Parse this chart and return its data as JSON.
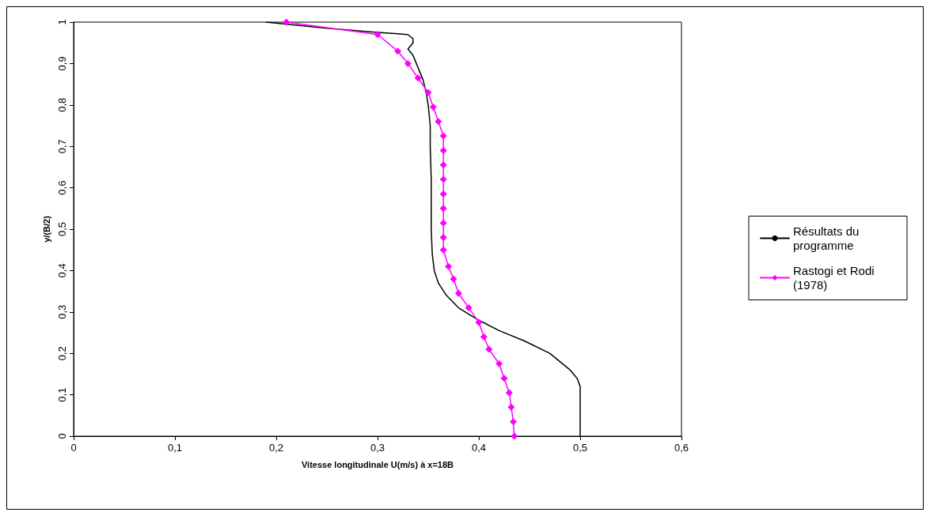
{
  "chart_data": {
    "type": "line",
    "xlabel": "Vitesse longitudinale U(m/s) à x=18B",
    "ylabel": "y/(B/2)",
    "xlim": [
      0,
      0.6
    ],
    "xticks": [
      0,
      {
        "value": 0.1,
        "label": "0,1"
      },
      {
        "value": 0.2,
        "label": "0,2"
      },
      {
        "value": 0.3,
        "label": "0,3"
      },
      {
        "value": 0.4,
        "label": "0,4"
      },
      {
        "value": 0.5,
        "label": "0,5"
      },
      {
        "value": 0.6,
        "label": "0,6"
      }
    ],
    "ylim": [
      0,
      1
    ],
    "yticks": [
      0,
      {
        "value": 0.1,
        "label": "0,1"
      },
      {
        "value": 0.2,
        "label": "0,2"
      },
      {
        "value": 0.3,
        "label": "0,3"
      },
      {
        "value": 0.4,
        "label": "0,4"
      },
      {
        "value": 0.5,
        "label": "0,5"
      },
      {
        "value": 0.6,
        "label": "0,6"
      },
      {
        "value": 0.7,
        "label": "0,7"
      },
      {
        "value": 0.8,
        "label": "0,8"
      },
      {
        "value": 0.9,
        "label": "0,9"
      },
      1
    ],
    "grid": false,
    "legend": "right",
    "line_style": "solid",
    "series": [
      {
        "name": "Résultats du programme",
        "color": "#000000",
        "marker": "none",
        "x": [
          0.19,
          0.25,
          0.3,
          0.33,
          0.335,
          0.335,
          0.33,
          0.335,
          0.34,
          0.345,
          0.348,
          0.35,
          0.352,
          0.352,
          0.353,
          0.353,
          0.354,
          0.356,
          0.36,
          0.368,
          0.38,
          0.4,
          0.42,
          0.445,
          0.47,
          0.48,
          0.49,
          0.497,
          0.5,
          0.5,
          0.5
        ],
        "values": [
          1,
          0.985,
          0.975,
          0.97,
          0.96,
          0.95,
          0.935,
          0.92,
          0.89,
          0.86,
          0.83,
          0.8,
          0.75,
          0.7,
          0.62,
          0.5,
          0.44,
          0.4,
          0.37,
          0.34,
          0.31,
          0.28,
          0.255,
          0.23,
          0.2,
          0.18,
          0.16,
          0.14,
          0.12,
          0.09,
          0
        ]
      },
      {
        "name": "Rastogi et Rodi (1978)",
        "color": "#ff00ff",
        "marker": "diamond",
        "x": [
          0.21,
          0.3,
          0.32,
          0.33,
          0.34,
          0.35,
          0.355,
          0.36,
          0.365,
          0.365,
          0.365,
          0.365,
          0.365,
          0.365,
          0.365,
          0.365,
          0.365,
          0.37,
          0.375,
          0.38,
          0.39,
          0.4,
          0.405,
          0.41,
          0.42,
          0.425,
          0.43,
          0.432,
          0.434,
          0.435
        ],
        "values": [
          1,
          0.97,
          0.93,
          0.9,
          0.865,
          0.83,
          0.795,
          0.76,
          0.725,
          0.69,
          0.655,
          0.62,
          0.585,
          0.55,
          0.515,
          0.48,
          0.45,
          0.41,
          0.38,
          0.345,
          0.31,
          0.275,
          0.24,
          0.21,
          0.175,
          0.14,
          0.105,
          0.07,
          0.035,
          0
        ]
      }
    ]
  }
}
